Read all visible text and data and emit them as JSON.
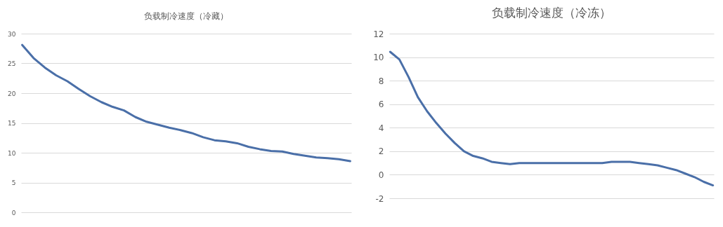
{
  "chart_data": [
    {
      "type": "line",
      "title": "负载制冷速度（冷藏）",
      "categories": [
        null,
        null,
        null,
        null,
        null,
        null,
        null,
        null,
        null,
        null,
        null,
        null,
        null,
        null,
        null,
        null,
        null,
        null,
        null,
        null,
        null,
        null,
        null,
        null,
        null,
        null,
        null,
        null,
        null,
        null
      ],
      "series": [
        {
          "color": "#4a6fa8",
          "values": [
            28.1,
            25.9,
            24.3,
            23.0,
            22.0,
            20.7,
            19.5,
            18.5,
            17.7,
            17.1,
            16.0,
            15.2,
            14.7,
            14.2,
            13.8,
            13.3,
            12.6,
            12.1,
            11.9,
            11.6,
            11.0,
            10.6,
            10.3,
            10.2,
            9.8,
            9.5,
            9.2,
            9.1,
            8.9,
            8.6
          ]
        }
      ],
      "ylim": [
        0,
        30
      ],
      "yticks": [
        0,
        5,
        10,
        15,
        20,
        25,
        30
      ],
      "grid": "y",
      "tick_labels": "y",
      "line_style": "solid"
    },
    {
      "type": "line",
      "title": "负载制冷速度（冷冻）",
      "categories": [
        null,
        null,
        null,
        null,
        null,
        null,
        null,
        null,
        null,
        null,
        null,
        null,
        null,
        null,
        null,
        null,
        null,
        null,
        null,
        null,
        null,
        null,
        null,
        null,
        null,
        null,
        null,
        null,
        null,
        null,
        null,
        null,
        null,
        null,
        null,
        null
      ],
      "series": [
        {
          "color": "#4a6fa8",
          "values": [
            10.45,
            9.8,
            8.3,
            6.6,
            5.4,
            4.4,
            3.5,
            2.7,
            2.0,
            1.6,
            1.4,
            1.1,
            1.0,
            0.9,
            1.0,
            1.0,
            1.0,
            1.0,
            1.0,
            1.0,
            1.0,
            1.0,
            1.0,
            1.0,
            1.1,
            1.1,
            1.1,
            1.0,
            0.9,
            0.8,
            0.6,
            0.4,
            0.1,
            -0.2,
            -0.6,
            -0.9
          ]
        }
      ],
      "ylim": [
        -2,
        12
      ],
      "yticks": [
        -2,
        0,
        2,
        4,
        6,
        8,
        10,
        12
      ],
      "grid": "y",
      "tick_labels": "y",
      "line_style": "solid"
    }
  ]
}
